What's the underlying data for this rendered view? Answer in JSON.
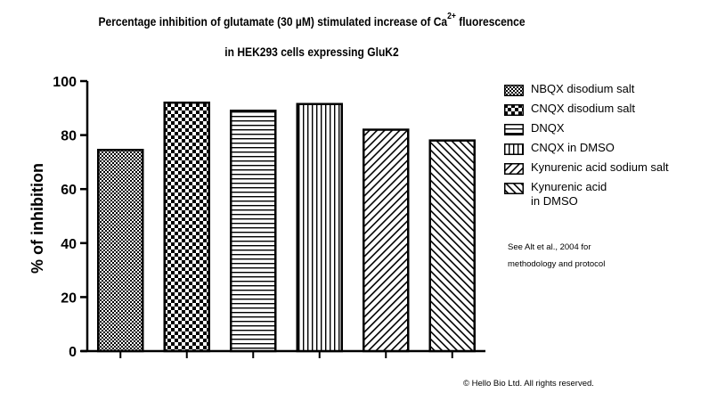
{
  "chart_data": {
    "type": "bar",
    "title_line1": "Percentage inhibition of glutamate (30 µM) stimulated increase of Ca",
    "title_sup": "2+",
    "title_line1_suffix": " fluorescence",
    "title_line2": "in HEK293  cells expressing GluK2",
    "ylabel": "% of inhibition",
    "xlabel": "",
    "ylim": [
      0,
      100
    ],
    "yticks": [
      "0",
      "20",
      "40",
      "60",
      "80",
      "100"
    ],
    "categories": [
      "NBQX disodium salt",
      "CNQX disodium salt",
      "DNQX",
      "CNQX in DMSO",
      "Kynurenic acid sodium salt",
      "Kynurenic acid\nin DMSO"
    ],
    "values": [
      74.5,
      92,
      89,
      91.5,
      82,
      78
    ],
    "patterns": [
      "fine-check",
      "coarse-check",
      "horizontal-lines",
      "vertical-lines",
      "diagonal-up",
      "diagonal-down"
    ],
    "legend_position": "right",
    "grid": false
  },
  "note": "See Alt et al., 2004 for\nmethodology and protocol",
  "copyright": "© Hello Bio Ltd. All rights reserved."
}
